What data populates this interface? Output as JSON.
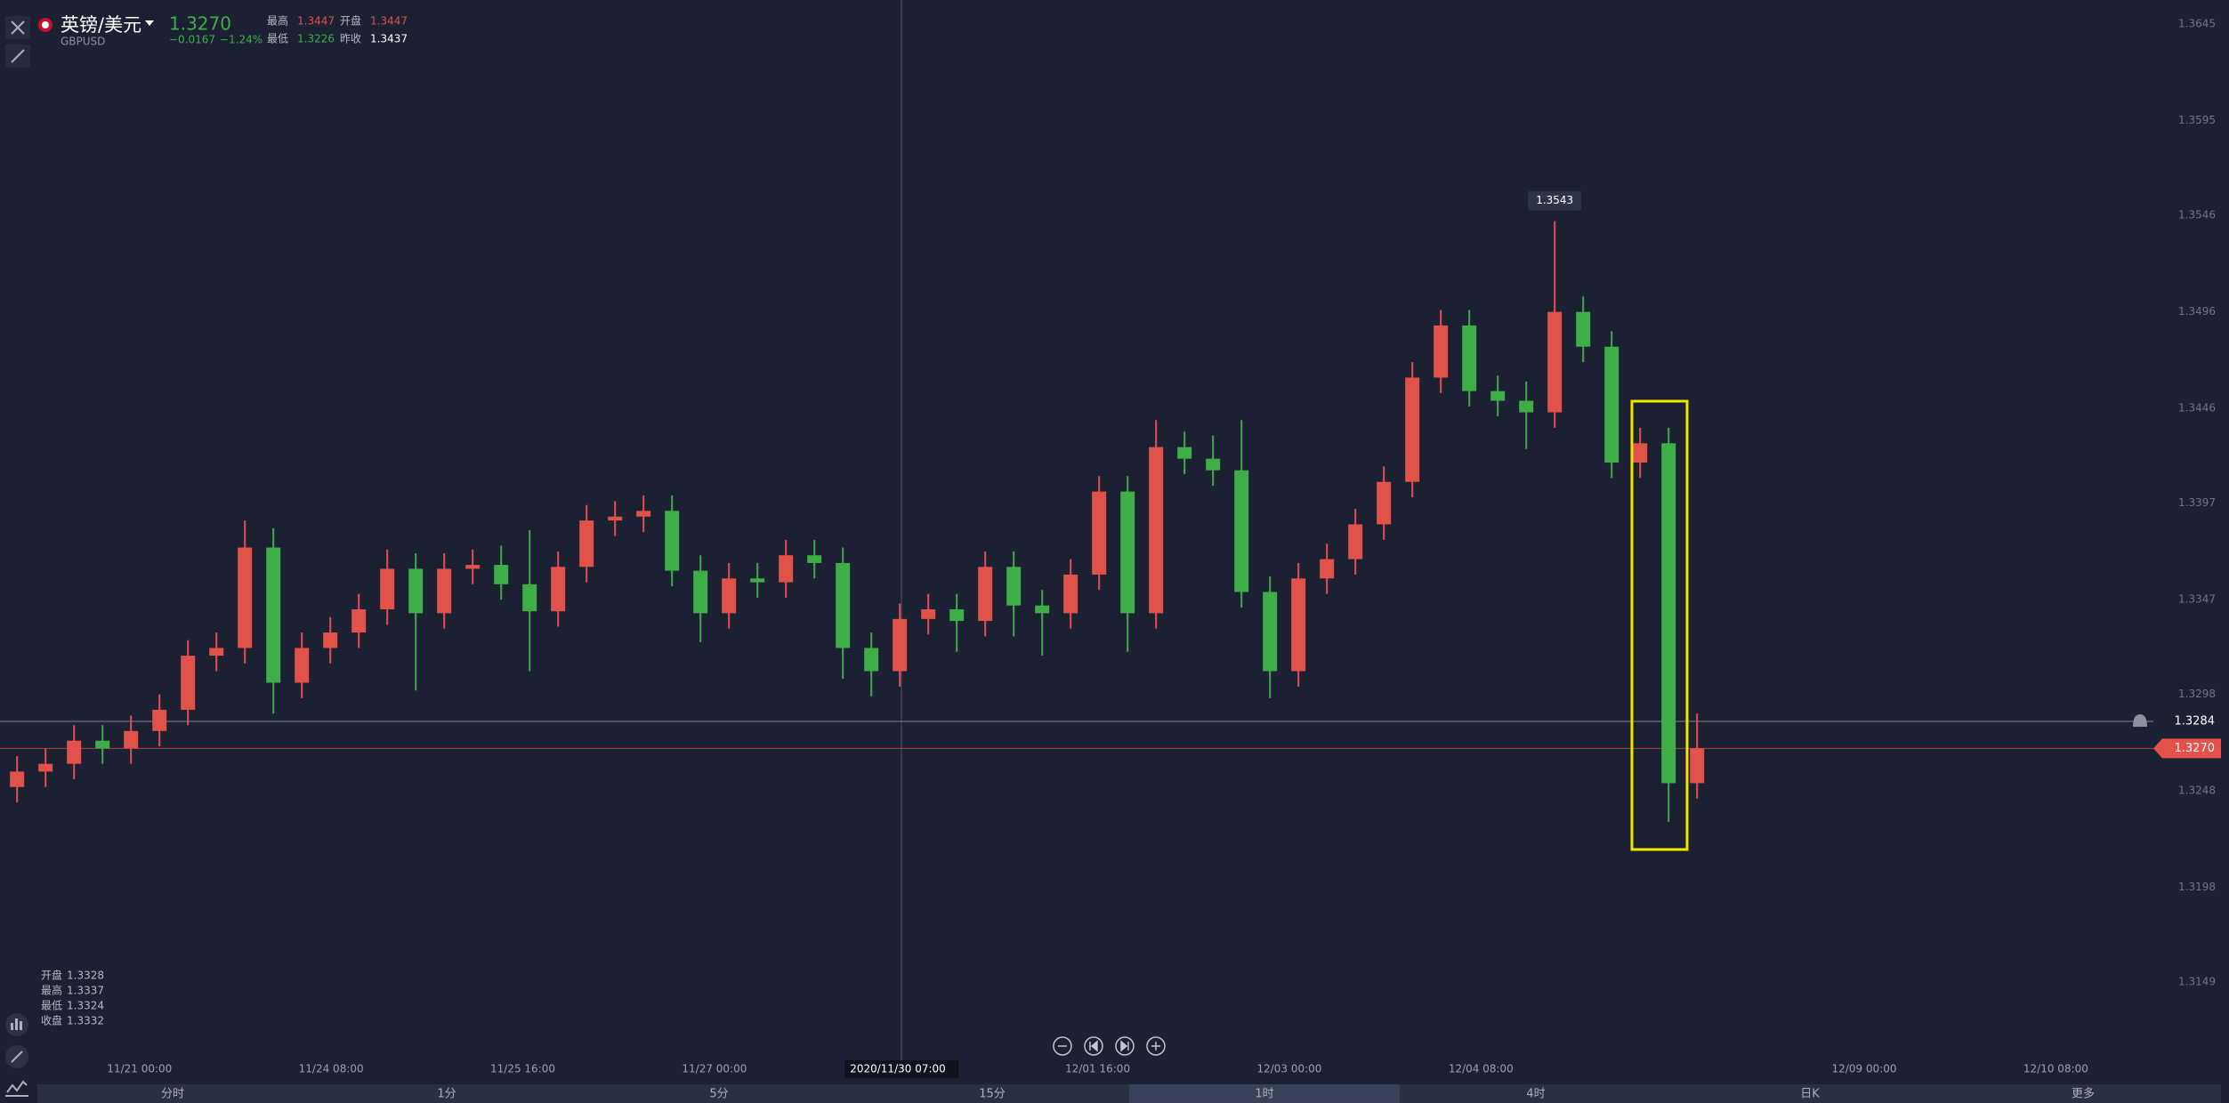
{
  "header": {
    "symbol_name": "英镑/美元",
    "symbol_code": "GBPUSD",
    "last": "1.3270",
    "change": "−0.0167",
    "change_pct": "−1.24%",
    "stats": [
      {
        "label": "最高",
        "value": "1.3447"
      },
      {
        "label": "开盘",
        "value": "1.3447"
      },
      {
        "label": "最低",
        "value": "1.3226"
      },
      {
        "label": "昨收",
        "value": "1.3437"
      }
    ]
  },
  "chart_data": {
    "type": "candlestick",
    "open": [
      1.325,
      1.3258,
      1.3262,
      1.3274,
      1.327,
      1.3279,
      1.329,
      1.3318,
      1.3322,
      1.3374,
      1.3304,
      1.3322,
      1.333,
      1.3342,
      1.3363,
      1.334,
      1.3363,
      1.3365,
      1.3355,
      1.3341,
      1.3364,
      1.3388,
      1.339,
      1.3393,
      1.3362,
      1.334,
      1.3358,
      1.3356,
      1.337,
      1.3366,
      1.3322,
      1.331,
      1.3337,
      1.3342,
      1.3336,
      1.3364,
      1.3344,
      1.334,
      1.336,
      1.3403,
      1.334,
      1.3426,
      1.342,
      1.3414,
      1.3351,
      1.331,
      1.3358,
      1.3368,
      1.3386,
      1.3408,
      1.3462,
      1.3489,
      1.3455,
      1.345,
      1.3444,
      1.3496,
      1.3478,
      1.3418,
      1.3428,
      1.3252
    ],
    "high": [
      1.3266,
      1.327,
      1.3282,
      1.3282,
      1.3287,
      1.3298,
      1.3326,
      1.333,
      1.3388,
      1.3384,
      1.333,
      1.3338,
      1.335,
      1.3373,
      1.3371,
      1.3371,
      1.3373,
      1.3375,
      1.3383,
      1.3372,
      1.3396,
      1.3398,
      1.3401,
      1.3401,
      1.337,
      1.3366,
      1.3366,
      1.3378,
      1.3378,
      1.3374,
      1.333,
      1.3345,
      1.335,
      1.335,
      1.3372,
      1.3372,
      1.3352,
      1.3368,
      1.3411,
      1.3411,
      1.344,
      1.3434,
      1.3432,
      1.344,
      1.3359,
      1.3366,
      1.3376,
      1.3394,
      1.3416,
      1.347,
      1.3497,
      1.3497,
      1.3463,
      1.346,
      1.3543,
      1.3504,
      1.3486,
      1.3436,
      1.3436,
      1.3288
    ],
    "low": [
      1.3242,
      1.325,
      1.3254,
      1.3262,
      1.3262,
      1.3271,
      1.3282,
      1.331,
      1.3314,
      1.3288,
      1.3296,
      1.3314,
      1.3322,
      1.3334,
      1.33,
      1.3332,
      1.3355,
      1.3347,
      1.331,
      1.3333,
      1.3356,
      1.338,
      1.3382,
      1.3354,
      1.3325,
      1.3332,
      1.3348,
      1.3348,
      1.3358,
      1.3306,
      1.3297,
      1.3302,
      1.3329,
      1.332,
      1.3328,
      1.3328,
      1.3318,
      1.3332,
      1.3352,
      1.332,
      1.3332,
      1.3412,
      1.3406,
      1.3343,
      1.3296,
      1.3302,
      1.335,
      1.336,
      1.3378,
      1.34,
      1.3454,
      1.3447,
      1.3442,
      1.3425,
      1.3436,
      1.347,
      1.341,
      1.341,
      1.3232,
      1.3244
    ],
    "close": [
      1.3258,
      1.3262,
      1.3274,
      1.327,
      1.3279,
      1.329,
      1.3318,
      1.3322,
      1.3374,
      1.3304,
      1.3322,
      1.333,
      1.3342,
      1.3363,
      1.334,
      1.3363,
      1.3365,
      1.3355,
      1.3341,
      1.3364,
      1.3388,
      1.339,
      1.3393,
      1.3362,
      1.334,
      1.3358,
      1.3356,
      1.337,
      1.3366,
      1.3322,
      1.331,
      1.3337,
      1.3342,
      1.3336,
      1.3364,
      1.3344,
      1.334,
      1.336,
      1.3403,
      1.334,
      1.3426,
      1.342,
      1.3414,
      1.3351,
      1.331,
      1.3358,
      1.3368,
      1.3386,
      1.3408,
      1.3462,
      1.3489,
      1.3455,
      1.345,
      1.3444,
      1.3496,
      1.3478,
      1.3418,
      1.3428,
      1.3252,
      1.327
    ],
    "up_color": "#e2514a",
    "down_color": "#3fae49",
    "ylim": [
      1.31085,
      1.36575
    ],
    "yticks": [
      1.3645,
      1.3595,
      1.3546,
      1.3496,
      1.3446,
      1.3397,
      1.3347,
      1.3298,
      1.3248,
      1.3198,
      1.3149
    ],
    "xticks": [
      "11/21 00:00",
      "11/24 08:00",
      "11/25 16:00",
      "11/27 00:00",
      null,
      "12/01 16:00",
      "12/03 00:00",
      "12/04 08:00",
      null,
      "12/09 00:00",
      "12/10 08:00"
    ],
    "crosshair_time": "2020/11/30 07:00",
    "alert_price": 1.3284,
    "last_price": {
      "value": 1.327,
      "label": "1.3270"
    }
  },
  "ohlc_legend": [
    {
      "label": "开盘",
      "value": "1.3328"
    },
    {
      "label": "最高",
      "value": "1.3337"
    },
    {
      "label": "最低",
      "value": "1.3324"
    },
    {
      "label": "收盘",
      "value": "1.3332"
    }
  ],
  "timeframes": [
    "分时",
    "1分",
    "5分",
    "15分",
    "1时",
    "4时",
    "日K",
    "更多"
  ]
}
